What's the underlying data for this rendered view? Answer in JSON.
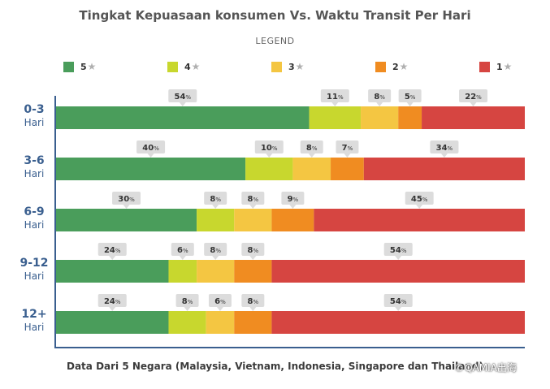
{
  "colors": {
    "5": "#4a9d5b",
    "4": "#c8d72e",
    "3": "#f4c642",
    "2": "#f08c21",
    "1": "#d64541"
  },
  "watermark": {
    "text": "QAMIA出海"
  },
  "chart_data": {
    "type": "bar",
    "stacked": true,
    "orientation": "horizontal",
    "title": "Tingkat Kepuasaan konsumen Vs. Waktu Transit Per Hari",
    "legend_title": "LEGEND",
    "legend_star": "★",
    "note": "Data Dari 5 Negara (Malaysia, Vietnam, Indonesia, Singapore dan Thailand)",
    "categories": [
      {
        "range": "0-3",
        "unit": "Hari"
      },
      {
        "range": "3-6",
        "unit": "Hari"
      },
      {
        "range": "6-9",
        "unit": "Hari"
      },
      {
        "range": "9-12",
        "unit": "Hari"
      },
      {
        "range": "12+",
        "unit": "Hari"
      }
    ],
    "series": [
      {
        "name": "5",
        "values": [
          54,
          40,
          30,
          24,
          24
        ]
      },
      {
        "name": "4",
        "values": [
          11,
          10,
          8,
          6,
          8
        ]
      },
      {
        "name": "3",
        "values": [
          8,
          8,
          8,
          8,
          6
        ]
      },
      {
        "name": "2",
        "values": [
          5,
          7,
          9,
          8,
          8
        ]
      },
      {
        "name": "1",
        "values": [
          22,
          34,
          45,
          54,
          54
        ]
      }
    ],
    "value_suffix": "%"
  }
}
